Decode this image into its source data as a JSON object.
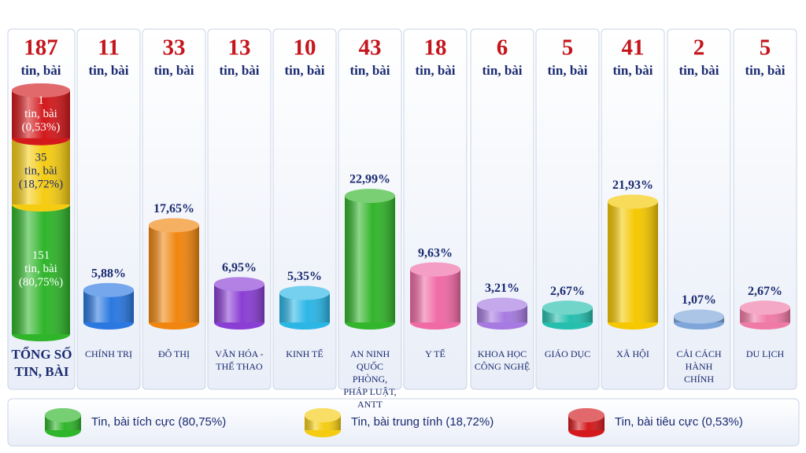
{
  "chart_data": {
    "type": "bar",
    "unit": "tin, bài",
    "total": {
      "count": 187,
      "label": "TỔNG SỐ TIN, BÀI",
      "segments": [
        {
          "name": "Tin, bài tích cực (80,75%)",
          "color": "#2fb52a",
          "value": 151,
          "percent": 80.75,
          "percent_label": "(80,75%)"
        },
        {
          "name": "Tin, bài trung tính (18,72%)",
          "color": "#f5cc12",
          "value": 35,
          "percent": 18.72,
          "percent_label": "(18,72%)"
        },
        {
          "name": "Tin, bài tiêu cực (0,53%)",
          "color": "#d3191c",
          "value": 1,
          "percent": 0.53,
          "percent_label": "(0,53%)"
        }
      ]
    },
    "categories": [
      "CHÍNH TRỊ",
      "ĐÔ THỊ",
      "VĂN HÓA - THỂ THAO",
      "KINH TẾ",
      "AN NINH QUỐC PHÒNG, PHÁP LUẬT, ANTT",
      "Y TẾ",
      "KHOA HỌC CÔNG NGHỆ",
      "GIÁO DỤC",
      "XÃ HỘI",
      "CẢI CÁCH HÀNH CHÍNH",
      "DU LỊCH"
    ],
    "counts": [
      11,
      33,
      13,
      10,
      43,
      18,
      6,
      5,
      41,
      2,
      5
    ],
    "values": [
      5.88,
      17.65,
      6.95,
      5.35,
      22.99,
      9.63,
      3.21,
      2.67,
      21.93,
      1.07,
      2.67
    ],
    "value_labels": [
      "5,88%",
      "17,65%",
      "6,95%",
      "5,35%",
      "22,99%",
      "9,63%",
      "3,21%",
      "2,67%",
      "21,93%",
      "1,07%",
      "2,67%"
    ],
    "colors": [
      "#2a78e0",
      "#f0860f",
      "#8a3ed4",
      "#2bb6e6",
      "#33b52c",
      "#f06aa6",
      "#a67ae0",
      "#26bfae",
      "#f5c800",
      "#7ea6da",
      "#f07aa6"
    ]
  }
}
